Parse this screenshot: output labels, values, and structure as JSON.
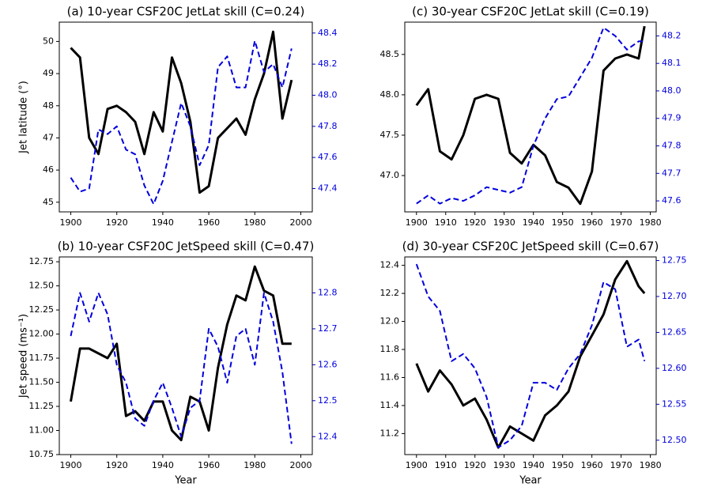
{
  "chart_data": [
    {
      "type": "line",
      "title": "(a) 10-year CSF20C JetLat skill (C=0.24)",
      "ylabel": "Jet latitude (°)",
      "x": [
        1900,
        1904,
        1908,
        1912,
        1916,
        1920,
        1924,
        1928,
        1932,
        1936,
        1940,
        1944,
        1948,
        1952,
        1956,
        1960,
        1964,
        1968,
        1972,
        1976,
        1980,
        1984,
        1988,
        1992,
        1996
      ],
      "xlim": [
        1895,
        2005
      ],
      "xticks": [
        1900,
        1920,
        1940,
        1960,
        1980,
        2000
      ],
      "ylim": [
        44.7,
        50.6
      ],
      "yticks": [
        45,
        46,
        47,
        48,
        49,
        50
      ],
      "y2lim": [
        47.25,
        48.47
      ],
      "y2ticks": [
        47.4,
        47.6,
        47.8,
        {
          "value": 48.0,
          "label": "48.0"
        },
        48.2,
        48.4
      ],
      "series": [
        {
          "color": "#000000",
          "linestyle": "solid",
          "values": [
            49.8,
            49.5,
            47.0,
            46.5,
            47.9,
            48.0,
            47.8,
            47.5,
            46.5,
            47.8,
            47.2,
            49.5,
            48.7,
            47.5,
            45.3,
            45.5,
            47.0,
            47.3,
            47.6,
            47.1,
            48.2,
            49.0,
            50.3,
            47.6,
            48.8
          ]
        },
        {
          "color": "#0000dd",
          "linestyle": "dashed",
          "axis": "y2",
          "values": [
            47.47,
            47.38,
            47.4,
            47.78,
            47.75,
            47.8,
            47.65,
            47.62,
            47.42,
            47.3,
            47.45,
            47.7,
            47.95,
            47.8,
            47.55,
            47.68,
            48.18,
            48.25,
            48.05,
            48.05,
            48.35,
            48.15,
            48.2,
            48.05,
            48.3
          ]
        }
      ]
    },
    {
      "type": "line",
      "title": "(b) 10-year CSF20C JetSpeed skill (C=0.47)",
      "ylabel": "Jet speed (ms⁻¹)",
      "xlabel": "Year",
      "x": [
        1900,
        1904,
        1908,
        1912,
        1916,
        1920,
        1924,
        1928,
        1932,
        1936,
        1940,
        1944,
        1948,
        1952,
        1956,
        1960,
        1964,
        1968,
        1972,
        1976,
        1980,
        1984,
        1988,
        1992,
        1996
      ],
      "xlim": [
        1895,
        2005
      ],
      "xticks": [
        1900,
        1920,
        1940,
        1960,
        1980,
        2000
      ],
      "ylim": [
        10.75,
        12.8
      ],
      "yticks": [
        10.75,
        {
          "value": 11.0,
          "label": "11.00"
        },
        11.25,
        {
          "value": 11.5,
          "label": "11.50"
        },
        11.75,
        {
          "value": 12.0,
          "label": "12.00"
        },
        12.25,
        {
          "value": 12.5,
          "label": "12.50"
        },
        12.75
      ],
      "y2lim": [
        12.35,
        12.9
      ],
      "y2ticks": [
        12.4,
        12.5,
        12.6,
        12.7,
        12.8
      ],
      "series": [
        {
          "color": "#000000",
          "linestyle": "solid",
          "values": [
            11.3,
            11.85,
            11.85,
            11.8,
            11.75,
            11.9,
            11.15,
            11.2,
            11.1,
            11.3,
            11.3,
            11.0,
            10.9,
            11.35,
            11.3,
            11.0,
            11.65,
            12.1,
            12.4,
            12.35,
            12.7,
            12.45,
            12.4,
            11.9,
            11.9
          ]
        },
        {
          "color": "#0000dd",
          "linestyle": "dashed",
          "axis": "y2",
          "values": [
            12.68,
            12.8,
            12.72,
            12.8,
            12.74,
            12.6,
            12.55,
            12.45,
            12.43,
            12.5,
            12.55,
            12.48,
            12.4,
            12.48,
            12.5,
            12.7,
            12.65,
            12.55,
            12.68,
            12.7,
            12.6,
            12.8,
            12.72,
            12.58,
            12.38
          ]
        }
      ]
    },
    {
      "type": "line",
      "title": "(c) 30-year CSF20C JetLat skill (C=0.19)",
      "x": [
        1900,
        1904,
        1908,
        1912,
        1916,
        1920,
        1924,
        1928,
        1932,
        1936,
        1940,
        1944,
        1948,
        1952,
        1956,
        1960,
        1964,
        1968,
        1972,
        1976,
        1978
      ],
      "xlim": [
        1896,
        1982
      ],
      "xticks": [
        1900,
        1910,
        1920,
        1930,
        1940,
        1950,
        1960,
        1970,
        1980
      ],
      "ylim": [
        46.55,
        48.9
      ],
      "yticks": [
        {
          "value": 47.0,
          "label": "47.0"
        },
        47.5,
        {
          "value": 48.0,
          "label": "48.0"
        },
        48.5
      ],
      "y2lim": [
        47.56,
        48.25
      ],
      "y2ticks": [
        47.6,
        47.7,
        47.8,
        47.9,
        {
          "value": 48.0,
          "label": "48.0"
        },
        48.1,
        48.2
      ],
      "series": [
        {
          "color": "#000000",
          "linestyle": "solid",
          "values": [
            47.87,
            48.07,
            47.3,
            47.2,
            47.5,
            47.95,
            48.0,
            47.95,
            47.28,
            47.15,
            47.38,
            47.25,
            46.92,
            46.85,
            46.65,
            47.05,
            48.3,
            48.45,
            48.5,
            48.45,
            48.85
          ]
        },
        {
          "color": "#0000dd",
          "linestyle": "dashed",
          "axis": "y2",
          "values": [
            47.59,
            47.62,
            47.59,
            47.61,
            47.6,
            47.62,
            47.65,
            47.64,
            47.63,
            47.65,
            47.8,
            47.9,
            47.97,
            47.98,
            48.05,
            48.12,
            48.23,
            48.2,
            48.15,
            48.18,
            48.18
          ]
        }
      ]
    },
    {
      "type": "line",
      "title": "(d) 30-year CSF20C JetSpeed skill (C=0.67)",
      "xlabel": "Year",
      "x": [
        1900,
        1904,
        1908,
        1912,
        1916,
        1920,
        1924,
        1928,
        1932,
        1936,
        1940,
        1944,
        1948,
        1952,
        1956,
        1960,
        1964,
        1968,
        1972,
        1976,
        1978
      ],
      "xlim": [
        1896,
        1982
      ],
      "xticks": [
        1900,
        1910,
        1920,
        1930,
        1940,
        1950,
        1960,
        1970,
        1980
      ],
      "ylim": [
        11.05,
        12.46
      ],
      "yticks": [
        11.2,
        11.4,
        11.6,
        11.8,
        {
          "value": 12.0,
          "label": "12.0"
        },
        12.2,
        12.4
      ],
      "y2lim": [
        12.48,
        12.755
      ],
      "y2ticks": [
        {
          "value": 12.5,
          "label": "12.50"
        },
        12.55,
        {
          "value": 12.6,
          "label": "12.60"
        },
        12.65,
        {
          "value": 12.7,
          "label": "12.70"
        },
        12.75
      ],
      "series": [
        {
          "color": "#000000",
          "linestyle": "solid",
          "values": [
            11.7,
            11.5,
            11.65,
            11.55,
            11.4,
            11.45,
            11.3,
            11.1,
            11.25,
            11.2,
            11.15,
            11.33,
            11.4,
            11.5,
            11.75,
            11.9,
            12.05,
            12.3,
            12.43,
            12.25,
            12.2
          ]
        },
        {
          "color": "#0000dd",
          "linestyle": "dashed",
          "axis": "y2",
          "values": [
            12.745,
            12.7,
            12.68,
            12.61,
            12.62,
            12.6,
            12.56,
            12.49,
            12.5,
            12.52,
            12.58,
            12.58,
            12.57,
            12.6,
            12.62,
            12.66,
            12.72,
            12.71,
            12.63,
            12.64,
            12.61
          ]
        }
      ]
    }
  ]
}
